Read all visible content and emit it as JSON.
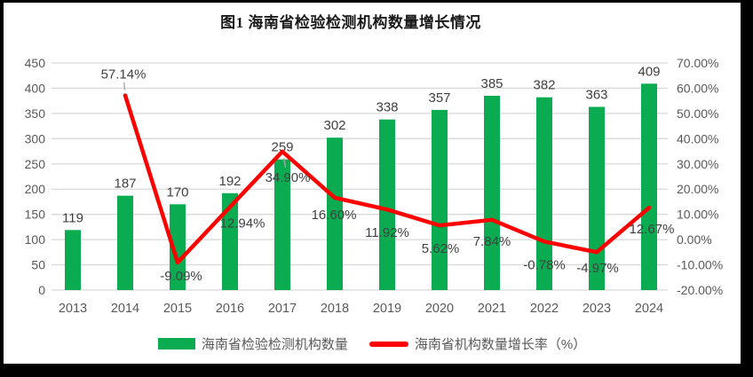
{
  "frame": {
    "border_color": "#000000",
    "surface_color": "#ffffff"
  },
  "chart_data": {
    "type": "combo",
    "title": "图1 海南省检验检测机构数量增长情况",
    "categories": [
      "2013",
      "2014",
      "2015",
      "2016",
      "2017",
      "2018",
      "2019",
      "2020",
      "2021",
      "2022",
      "2023",
      "2024"
    ],
    "series": [
      {
        "name": "海南省检验检测机构数量",
        "type": "bar",
        "axis": "left",
        "color": "#0aab51",
        "values": [
          119,
          187,
          170,
          192,
          259,
          302,
          338,
          357,
          385,
          382,
          363,
          409
        ],
        "labels": [
          "119",
          "187",
          "170",
          "192",
          "259",
          "302",
          "338",
          "357",
          "385",
          "382",
          "363",
          "409"
        ]
      },
      {
        "name": "海南省机构数量增长率（%）",
        "type": "line",
        "axis": "right",
        "color": "#fe0000",
        "values": [
          null,
          57.14,
          -9.09,
          12.94,
          34.9,
          16.6,
          11.92,
          5.62,
          7.84,
          -0.78,
          -4.97,
          12.67
        ],
        "labels": [
          "",
          "57.14%",
          "-9.09%",
          "12.94%",
          "34.90%",
          "16.60%",
          "11.92%",
          "5.62%",
          "7.84%",
          "-0.78%",
          "-4.97%",
          "12.67%"
        ],
        "label_offsets": [
          [
            0,
            0
          ],
          [
            -2,
            -24
          ],
          [
            4,
            15
          ],
          [
            14,
            18
          ],
          [
            6,
            29
          ],
          [
            -1,
            19
          ],
          [
            0,
            26
          ],
          [
            1,
            26
          ],
          [
            0,
            24
          ],
          [
            0,
            26
          ],
          [
            1,
            18
          ],
          [
            3,
            24
          ]
        ],
        "leader_indices": [
          1,
          4
        ]
      }
    ],
    "left_axis": {
      "min": 0,
      "max": 450,
      "step": 50,
      "ticks": [
        "0",
        "50",
        "100",
        "150",
        "200",
        "250",
        "300",
        "350",
        "400",
        "450"
      ]
    },
    "right_axis": {
      "min": -20,
      "max": 70,
      "step": 10,
      "ticks": [
        "-20.00%",
        "-10.00%",
        "0.00%",
        "10.00%",
        "20.00%",
        "30.00%",
        "40.00%",
        "50.00%",
        "60.00%",
        "70.00%"
      ]
    },
    "grid": true,
    "legend_position": "bottom",
    "colors": {
      "gridline": "#d9d9d9",
      "axis_text": "#595959",
      "data_label": "#404040",
      "leader": "#a6a6a6",
      "title_text": "#1a1a1a"
    }
  },
  "legend": {
    "items": [
      {
        "label": "海南省检验检测机构数量",
        "swatch": "bar",
        "color": "#0aab51"
      },
      {
        "label": "海南省机构数量增长率（%）",
        "swatch": "line",
        "color": "#fe0000"
      }
    ]
  }
}
